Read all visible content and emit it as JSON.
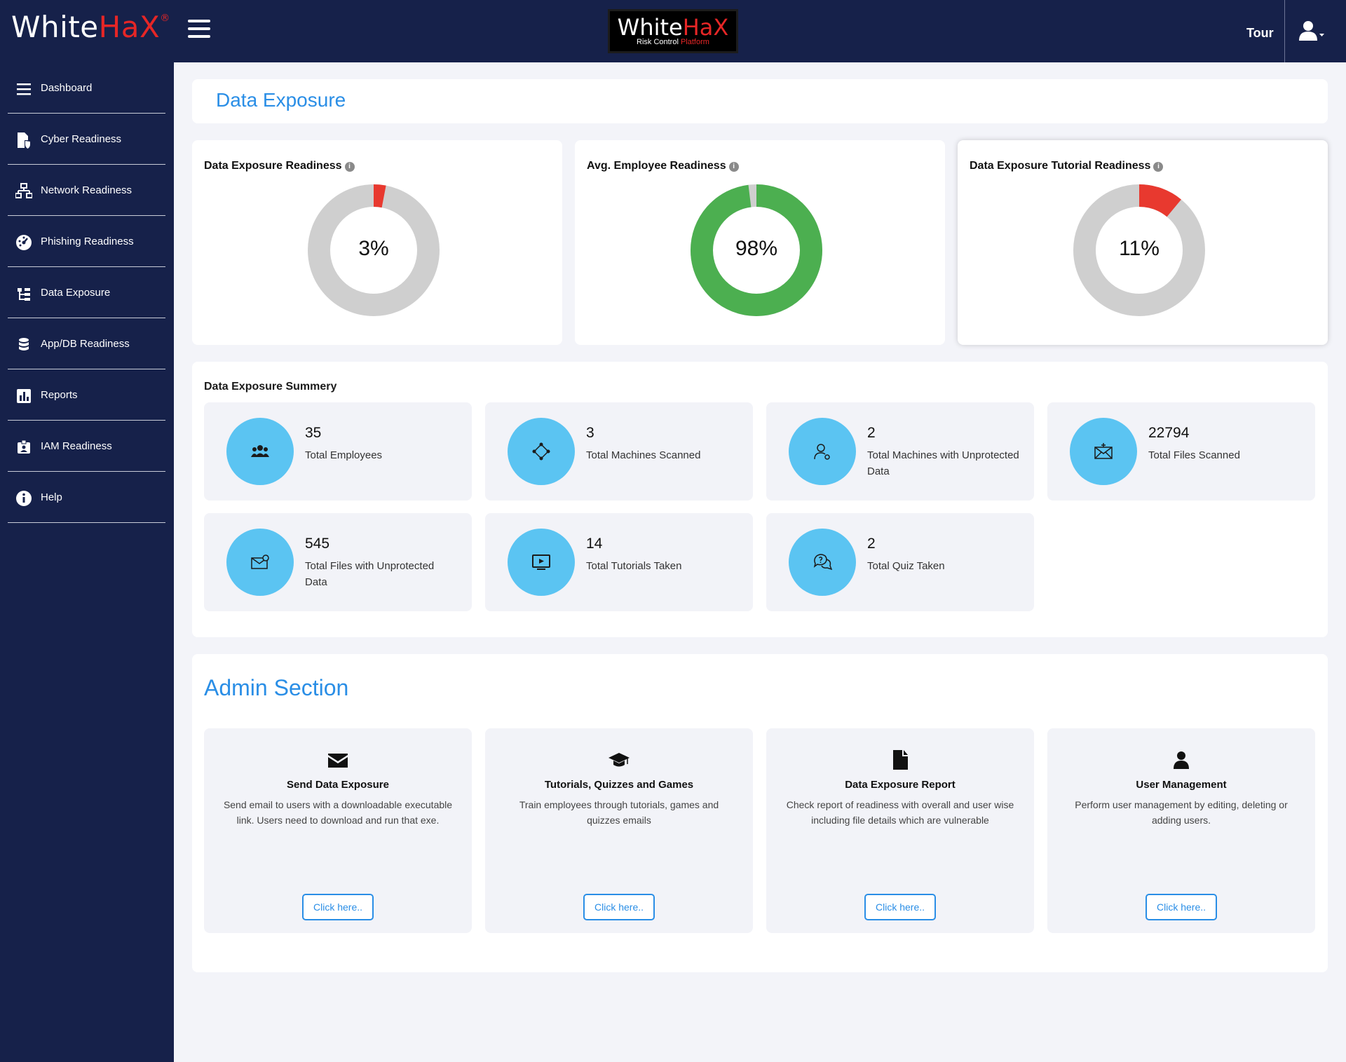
{
  "header": {
    "brand_white": "White",
    "brand_red": "HaX",
    "brand_reg": "®",
    "center_logo_white": "White",
    "center_logo_red": "HaX",
    "center_logo_sub": "Risk Control",
    "center_logo_sub_red": "Platform",
    "tour_label": "Tour",
    "icons": {
      "menu": "hamburger-icon",
      "user": "user-dropdown-icon"
    }
  },
  "sidebar": {
    "items": [
      {
        "label": "Dashboard",
        "icon": "list-icon"
      },
      {
        "label": "Cyber Readiness",
        "icon": "file-shield-icon"
      },
      {
        "label": "Network Readiness",
        "icon": "network-icon"
      },
      {
        "label": "Phishing Readiness",
        "icon": "gauge-icon"
      },
      {
        "label": "Data Exposure",
        "icon": "sitemap-icon"
      },
      {
        "label": "App/DB Readiness",
        "icon": "database-icon"
      },
      {
        "label": "Reports",
        "icon": "bar-chart-icon"
      },
      {
        "label": "IAM Readiness",
        "icon": "id-badge-icon"
      },
      {
        "label": "Help",
        "icon": "info-icon"
      }
    ]
  },
  "page": {
    "title": "Data Exposure"
  },
  "gauges": [
    {
      "title": "Data Exposure Readiness",
      "value_text": "3%",
      "value": 3,
      "fill_color": "#e8392f"
    },
    {
      "title": "Avg. Employee Readiness",
      "value_text": "98%",
      "value": 98,
      "fill_color": "#4caf50"
    },
    {
      "title": "Data Exposure Tutorial Readiness",
      "value_text": "11%",
      "value": 11,
      "fill_color": "#e8392f"
    }
  ],
  "colors": {
    "gauge_track": "#cfcfcf",
    "accent": "#2a8ee6",
    "stat_circle": "#5bc4f2",
    "nav_bg": "#16214a"
  },
  "summary": {
    "title": "Data Exposure Summery",
    "stats": [
      {
        "value": "35",
        "label": "Total Employees",
        "icon": "users-icon"
      },
      {
        "value": "3",
        "label": "Total Machines Scanned",
        "icon": "network-nodes-icon"
      },
      {
        "value": "2",
        "label": "Total Machines with Unprotected Data",
        "icon": "user-settings-icon"
      },
      {
        "value": "22794",
        "label": "Total Files Scanned",
        "icon": "envelope-open-icon"
      },
      {
        "value": "545",
        "label": "Total Files with Unprotected Data",
        "icon": "envelope-alert-icon"
      },
      {
        "value": "14",
        "label": "Total Tutorials Taken",
        "icon": "monitor-play-icon"
      },
      {
        "value": "2",
        "label": "Total Quiz Taken",
        "icon": "chat-question-icon"
      }
    ]
  },
  "admin": {
    "title": "Admin Section",
    "cards": [
      {
        "title": "Send Data Exposure",
        "desc": "Send email to users with a downloadable executable link. Users need to download and run that exe.",
        "button": "Click here..",
        "icon": "envelope-icon"
      },
      {
        "title": "Tutorials, Quizzes and Games",
        "desc": "Train employees through tutorials, games and quizzes emails",
        "button": "Click here..",
        "icon": "graduation-cap-icon"
      },
      {
        "title": "Data Exposure Report",
        "desc": "Check report of readiness with overall and user wise including file details which are vulnerable",
        "button": "Click here..",
        "icon": "file-icon"
      },
      {
        "title": "User Management",
        "desc": "Perform user management by editing, deleting or adding users.",
        "button": "Click here..",
        "icon": "user-icon"
      }
    ]
  }
}
